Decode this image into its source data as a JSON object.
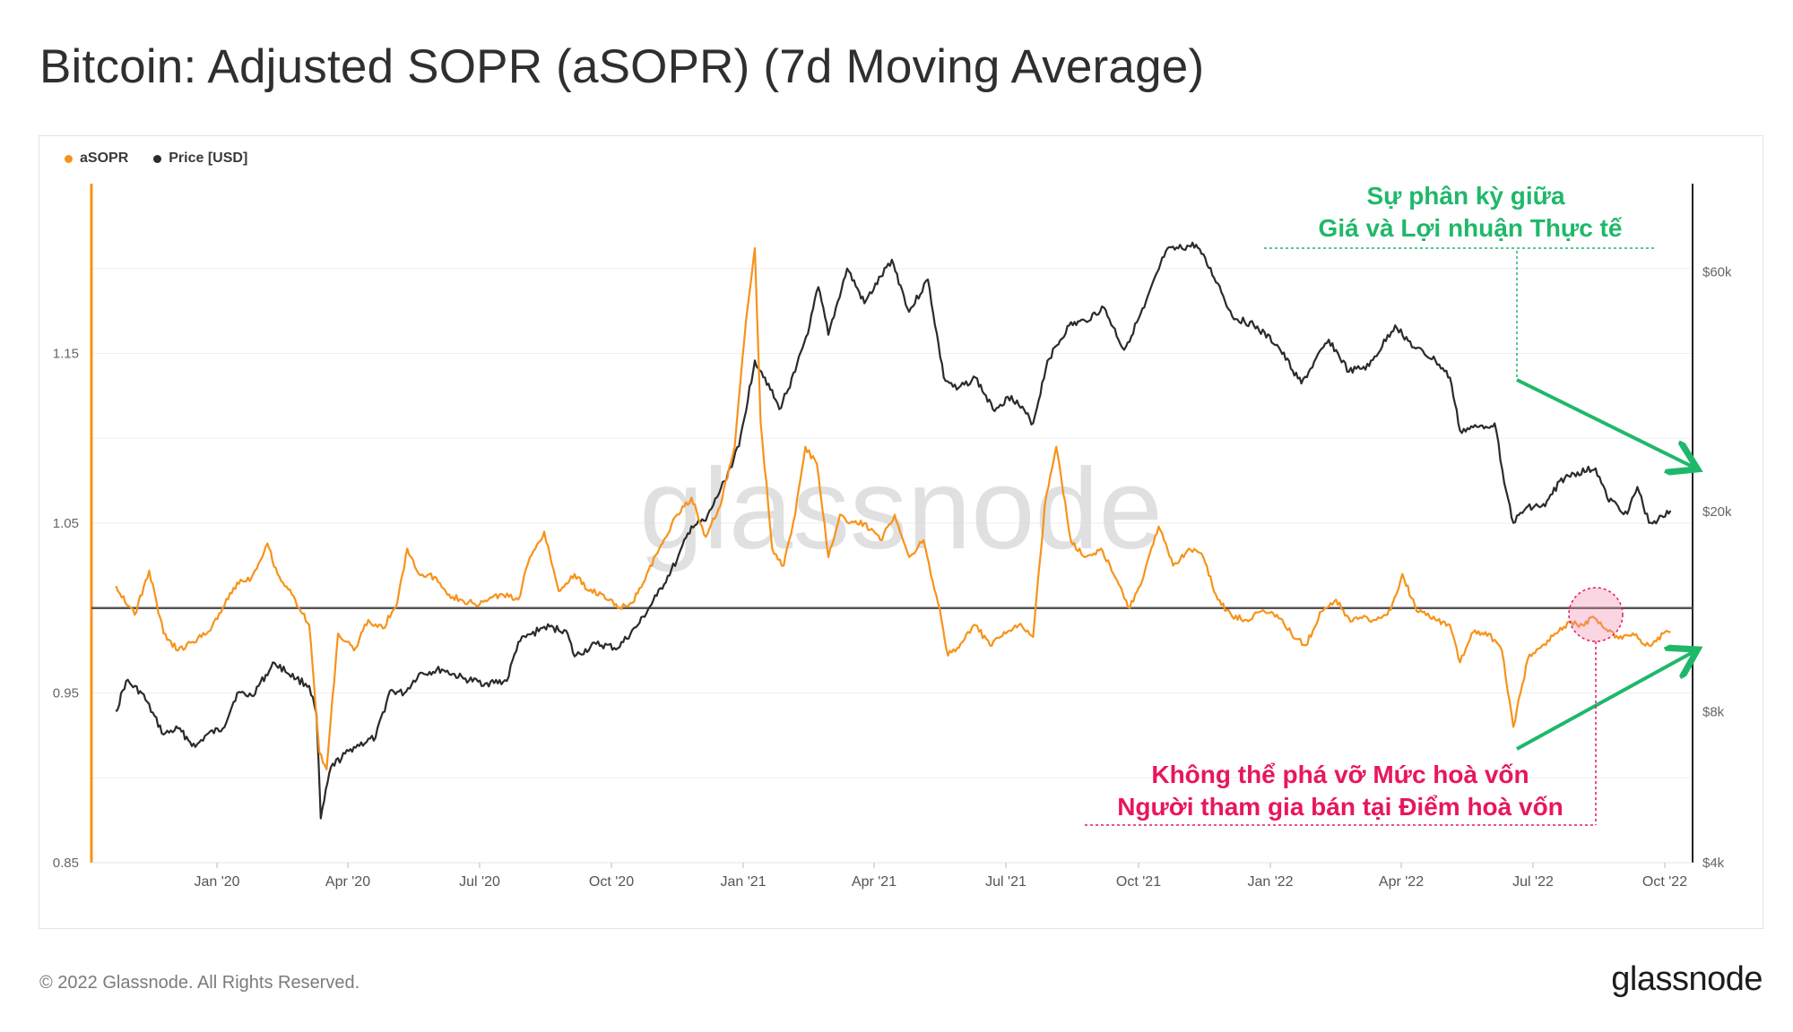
{
  "title": "Bitcoin: Adjusted SOPR (aSOPR) (7d Moving Average)",
  "footer": {
    "copyright": "© 2022 Glassnode. All Rights Reserved.",
    "logo": "glassnode"
  },
  "watermark": "glassnode",
  "colors": {
    "asopr": "#f7931a",
    "price": "#2b2b2b",
    "annotation_green": "#1fb86a",
    "annotation_pink": "#e8165e"
  },
  "legend": [
    {
      "label": "aSOPR",
      "color": "#f7931a"
    },
    {
      "label": "Price [USD]",
      "color": "#2b2b2b"
    }
  ],
  "annotations": {
    "divergence_line1": "Sự phân kỳ giữa",
    "divergence_line2": "Giá và Lợi nhuận Thực tế",
    "breakeven_line1": "Không thể phá vỡ Mức hoà vốn",
    "breakeven_line2": "Người tham gia bán tại Điểm hoà vốn"
  },
  "chart_data": {
    "type": "line",
    "x_ticks": [
      "Jan '20",
      "Apr '20",
      "Jul '20",
      "Oct '20",
      "Jan '21",
      "Apr '21",
      "Jul '21",
      "Oct '21",
      "Jan '22",
      "Apr '22",
      "Jul '22",
      "Oct '22"
    ],
    "x_range": [
      "2019-10-23",
      "2022-10-05"
    ],
    "left_axis": {
      "ticks": [
        0.85,
        0.95,
        1.05,
        1.15
      ],
      "range": [
        0.85,
        1.25
      ],
      "label": ""
    },
    "right_axis": {
      "scale": "log",
      "ticks_labels": [
        "$4k",
        "$8k",
        "$20k",
        "$60k"
      ],
      "ticks": [
        4000,
        8000,
        20000,
        60000
      ],
      "range": [
        4000,
        90000
      ],
      "label": ""
    },
    "reference_line": 1.0,
    "grid": "horizontal",
    "legend_position": "top-left",
    "series": [
      {
        "name": "aSOPR",
        "axis": "left",
        "points": [
          [
            "2019-10-23",
            1.013
          ],
          [
            "2019-11-05",
            0.996
          ],
          [
            "2019-11-15",
            1.022
          ],
          [
            "2019-11-25",
            0.985
          ],
          [
            "2019-12-05",
            0.975
          ],
          [
            "2019-12-15",
            0.98
          ],
          [
            "2019-12-25",
            0.985
          ],
          [
            "2020-01-05",
            1.0
          ],
          [
            "2020-01-15",
            1.015
          ],
          [
            "2020-01-25",
            1.018
          ],
          [
            "2020-02-05",
            1.038
          ],
          [
            "2020-02-12",
            1.02
          ],
          [
            "2020-02-22",
            1.008
          ],
          [
            "2020-03-05",
            0.99
          ],
          [
            "2020-03-12",
            0.915
          ],
          [
            "2020-03-17",
            0.905
          ],
          [
            "2020-03-25",
            0.985
          ],
          [
            "2020-04-05",
            0.975
          ],
          [
            "2020-04-15",
            0.993
          ],
          [
            "2020-04-25",
            0.988
          ],
          [
            "2020-05-05",
            1.003
          ],
          [
            "2020-05-12",
            1.035
          ],
          [
            "2020-05-20",
            1.02
          ],
          [
            "2020-06-01",
            1.018
          ],
          [
            "2020-06-10",
            1.008
          ],
          [
            "2020-06-20",
            1.004
          ],
          [
            "2020-07-01",
            1.002
          ],
          [
            "2020-07-15",
            1.008
          ],
          [
            "2020-07-28",
            1.005
          ],
          [
            "2020-08-05",
            1.03
          ],
          [
            "2020-08-15",
            1.045
          ],
          [
            "2020-08-25",
            1.01
          ],
          [
            "2020-09-05",
            1.02
          ],
          [
            "2020-09-15",
            1.01
          ],
          [
            "2020-09-25",
            1.008
          ],
          [
            "2020-10-05",
            1.0
          ],
          [
            "2020-10-15",
            1.003
          ],
          [
            "2020-10-25",
            1.02
          ],
          [
            "2020-11-05",
            1.038
          ],
          [
            "2020-11-15",
            1.055
          ],
          [
            "2020-11-25",
            1.065
          ],
          [
            "2020-12-05",
            1.042
          ],
          [
            "2020-12-15",
            1.06
          ],
          [
            "2020-12-25",
            1.095
          ],
          [
            "2021-01-02",
            1.17
          ],
          [
            "2021-01-08",
            1.212
          ],
          [
            "2021-01-12",
            1.11
          ],
          [
            "2021-01-20",
            1.035
          ],
          [
            "2021-01-28",
            1.025
          ],
          [
            "2021-02-05",
            1.055
          ],
          [
            "2021-02-12",
            1.095
          ],
          [
            "2021-02-20",
            1.085
          ],
          [
            "2021-02-28",
            1.03
          ],
          [
            "2021-03-08",
            1.055
          ],
          [
            "2021-03-15",
            1.05
          ],
          [
            "2021-03-25",
            1.05
          ],
          [
            "2021-04-05",
            1.04
          ],
          [
            "2021-04-15",
            1.055
          ],
          [
            "2021-04-25",
            1.03
          ],
          [
            "2021-05-05",
            1.04
          ],
          [
            "2021-05-15",
            1.003
          ],
          [
            "2021-05-22",
            0.972
          ],
          [
            "2021-06-01",
            0.98
          ],
          [
            "2021-06-10",
            0.99
          ],
          [
            "2021-06-20",
            0.978
          ],
          [
            "2021-07-01",
            0.985
          ],
          [
            "2021-07-10",
            0.99
          ],
          [
            "2021-07-20",
            0.983
          ],
          [
            "2021-07-28",
            1.06
          ],
          [
            "2021-08-05",
            1.095
          ],
          [
            "2021-08-15",
            1.04
          ],
          [
            "2021-08-25",
            1.03
          ],
          [
            "2021-09-05",
            1.035
          ],
          [
            "2021-09-15",
            1.018
          ],
          [
            "2021-09-25",
            1.0
          ],
          [
            "2021-10-05",
            1.02
          ],
          [
            "2021-10-15",
            1.048
          ],
          [
            "2021-10-25",
            1.025
          ],
          [
            "2021-11-05",
            1.035
          ],
          [
            "2021-11-15",
            1.03
          ],
          [
            "2021-11-25",
            1.005
          ],
          [
            "2021-12-05",
            0.995
          ],
          [
            "2021-12-15",
            0.993
          ],
          [
            "2021-12-25",
            0.998
          ],
          [
            "2022-01-05",
            0.996
          ],
          [
            "2022-01-15",
            0.985
          ],
          [
            "2022-01-25",
            0.978
          ],
          [
            "2022-02-05",
            0.998
          ],
          [
            "2022-02-15",
            1.005
          ],
          [
            "2022-02-25",
            0.992
          ],
          [
            "2022-03-05",
            0.994
          ],
          [
            "2022-03-15",
            0.993
          ],
          [
            "2022-03-25",
            0.999
          ],
          [
            "2022-04-02",
            1.02
          ],
          [
            "2022-04-12",
            0.998
          ],
          [
            "2022-04-25",
            0.993
          ],
          [
            "2022-05-05",
            0.99
          ],
          [
            "2022-05-12",
            0.968
          ],
          [
            "2022-05-20",
            0.985
          ],
          [
            "2022-06-01",
            0.985
          ],
          [
            "2022-06-10",
            0.975
          ],
          [
            "2022-06-18",
            0.93
          ],
          [
            "2022-06-28",
            0.97
          ],
          [
            "2022-07-08",
            0.978
          ],
          [
            "2022-07-18",
            0.985
          ],
          [
            "2022-07-28",
            0.992
          ],
          [
            "2022-08-05",
            0.99
          ],
          [
            "2022-08-12",
            0.995
          ],
          [
            "2022-08-20",
            0.988
          ],
          [
            "2022-08-30",
            0.982
          ],
          [
            "2022-09-10",
            0.984
          ],
          [
            "2022-09-20",
            0.978
          ],
          [
            "2022-09-30",
            0.985
          ],
          [
            "2022-10-05",
            0.986
          ]
        ]
      },
      {
        "name": "Price [USD]",
        "axis": "right",
        "points": [
          [
            "2019-10-23",
            8000
          ],
          [
            "2019-10-30",
            9200
          ],
          [
            "2019-11-10",
            8700
          ],
          [
            "2019-11-25",
            7200
          ],
          [
            "2019-12-05",
            7400
          ],
          [
            "2019-12-17",
            6800
          ],
          [
            "2019-12-25",
            7200
          ],
          [
            "2020-01-05",
            7400
          ],
          [
            "2020-01-15",
            8700
          ],
          [
            "2020-01-25",
            8600
          ],
          [
            "2020-02-10",
            10000
          ],
          [
            "2020-02-25",
            9300
          ],
          [
            "2020-03-05",
            9000
          ],
          [
            "2020-03-10",
            7900
          ],
          [
            "2020-03-13",
            4900
          ],
          [
            "2020-03-20",
            6200
          ],
          [
            "2020-04-05",
            6800
          ],
          [
            "2020-04-20",
            7100
          ],
          [
            "2020-04-30",
            8800
          ],
          [
            "2020-05-10",
            8700
          ],
          [
            "2020-05-20",
            9500
          ],
          [
            "2020-06-05",
            9700
          ],
          [
            "2020-06-20",
            9300
          ],
          [
            "2020-07-05",
            9100
          ],
          [
            "2020-07-20",
            9200
          ],
          [
            "2020-07-28",
            11000
          ],
          [
            "2020-08-15",
            11800
          ],
          [
            "2020-08-30",
            11600
          ],
          [
            "2020-09-05",
            10300
          ],
          [
            "2020-09-20",
            10900
          ],
          [
            "2020-10-05",
            10700
          ],
          [
            "2020-10-20",
            12000
          ],
          [
            "2020-11-01",
            13600
          ],
          [
            "2020-11-15",
            16000
          ],
          [
            "2020-11-25",
            18700
          ],
          [
            "2020-12-05",
            19200
          ],
          [
            "2020-12-18",
            23000
          ],
          [
            "2020-12-28",
            27000
          ],
          [
            "2021-01-08",
            40000
          ],
          [
            "2021-01-15",
            37000
          ],
          [
            "2021-01-25",
            32000
          ],
          [
            "2021-02-05",
            38000
          ],
          [
            "2021-02-15",
            47000
          ],
          [
            "2021-02-21",
            56000
          ],
          [
            "2021-02-28",
            45000
          ],
          [
            "2021-03-13",
            61000
          ],
          [
            "2021-03-25",
            52000
          ],
          [
            "2021-04-13",
            63500
          ],
          [
            "2021-04-25",
            50000
          ],
          [
            "2021-05-08",
            58000
          ],
          [
            "2021-05-19",
            37000
          ],
          [
            "2021-05-28",
            35000
          ],
          [
            "2021-06-10",
            37000
          ],
          [
            "2021-06-22",
            32000
          ],
          [
            "2021-07-05",
            34000
          ],
          [
            "2021-07-20",
            30000
          ],
          [
            "2021-07-30",
            40000
          ],
          [
            "2021-08-14",
            47000
          ],
          [
            "2021-08-25",
            48000
          ],
          [
            "2021-09-07",
            51000
          ],
          [
            "2021-09-21",
            42000
          ],
          [
            "2021-10-05",
            51000
          ],
          [
            "2021-10-20",
            66000
          ],
          [
            "2021-11-10",
            68000
          ],
          [
            "2021-11-25",
            57000
          ],
          [
            "2021-12-05",
            49000
          ],
          [
            "2021-12-20",
            47000
          ],
          [
            "2022-01-05",
            43000
          ],
          [
            "2022-01-22",
            36000
          ],
          [
            "2022-02-10",
            44000
          ],
          [
            "2022-02-24",
            38000
          ],
          [
            "2022-03-10",
            39000
          ],
          [
            "2022-03-28",
            47000
          ],
          [
            "2022-04-10",
            42500
          ],
          [
            "2022-04-25",
            40000
          ],
          [
            "2022-05-05",
            37000
          ],
          [
            "2022-05-12",
            29000
          ],
          [
            "2022-05-25",
            29500
          ],
          [
            "2022-06-05",
            30000
          ],
          [
            "2022-06-13",
            22000
          ],
          [
            "2022-06-18",
            19000
          ],
          [
            "2022-06-28",
            20500
          ],
          [
            "2022-07-10",
            20500
          ],
          [
            "2022-07-20",
            23000
          ],
          [
            "2022-07-30",
            23800
          ],
          [
            "2022-08-14",
            24400
          ],
          [
            "2022-08-22",
            21300
          ],
          [
            "2022-09-05",
            19800
          ],
          [
            "2022-09-12",
            22400
          ],
          [
            "2022-09-20",
            19000
          ],
          [
            "2022-09-30",
            19500
          ],
          [
            "2022-10-05",
            20100
          ]
        ]
      }
    ]
  }
}
